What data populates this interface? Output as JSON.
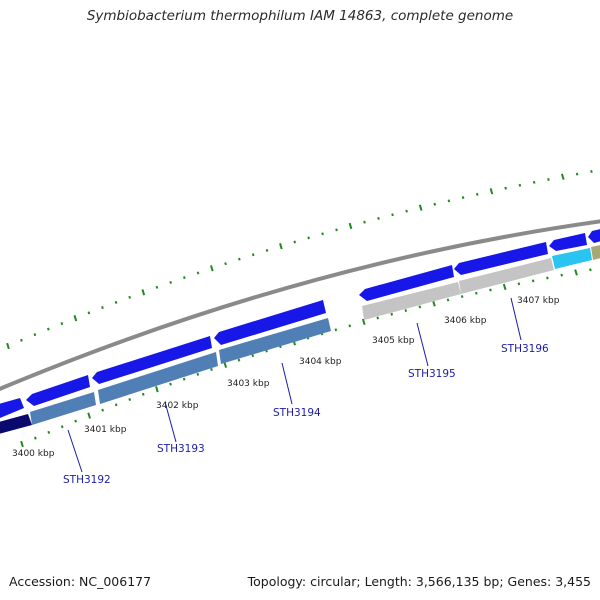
{
  "title": "Symbiobacterium thermophilum IAM 14863, complete genome",
  "footer": {
    "accession": "Accession: NC_006177",
    "topology": "Topology: circular; Length: 3,566,135 bp; Genes: 3,455"
  },
  "kbp_labels": [
    "3400 kbp",
    "3401 kbp",
    "3402 kbp",
    "3403 kbp",
    "3404 kbp",
    "3405 kbp",
    "3406 kbp",
    "3407 kbp"
  ],
  "gene_labels": [
    "STH3192",
    "STH3193",
    "STH3194",
    "STH3195",
    "STH3196"
  ],
  "colors": {
    "backbone": "#8a8a8a",
    "tick": "#1f8a1f",
    "forward_gene": "#1717e8",
    "reverse_gene_steel": "#4f7fb5",
    "reverse_gene_grey": "#c4c4c4",
    "reverse_gene_cyan": "#29c4f0",
    "reverse_gene_navy": "#0a0a6e",
    "reverse_gene_olive": "#a8a874",
    "label_line": "#1c1ca8"
  }
}
